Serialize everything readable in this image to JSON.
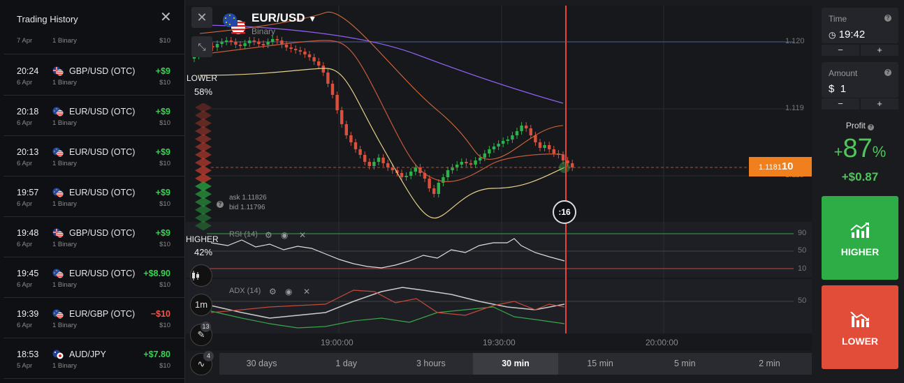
{
  "history": {
    "title": "Trading History",
    "first_row": {
      "date": "7 Apr",
      "type": "1 Binary",
      "investment": "$10"
    },
    "rows": [
      {
        "time": "20:24",
        "date": "6 Apr",
        "pair": "GBP/USD (OTC)",
        "type": "1 Binary",
        "result": "+$9",
        "investment": "$10",
        "flag": "uk"
      },
      {
        "time": "20:18",
        "date": "6 Apr",
        "pair": "EUR/USD (OTC)",
        "type": "1 Binary",
        "result": "+$9",
        "investment": "$10",
        "flag": "eu"
      },
      {
        "time": "20:13",
        "date": "6 Apr",
        "pair": "EUR/USD (OTC)",
        "type": "1 Binary",
        "result": "+$9",
        "investment": "$10",
        "flag": "eu"
      },
      {
        "time": "19:57",
        "date": "6 Apr",
        "pair": "EUR/USD (OTC)",
        "type": "1 Binary",
        "result": "+$9",
        "investment": "$10",
        "flag": "eu"
      },
      {
        "time": "19:48",
        "date": "6 Apr",
        "pair": "GBP/USD (OTC)",
        "type": "1 Binary",
        "result": "+$9",
        "investment": "$10",
        "flag": "uk"
      },
      {
        "time": "19:45",
        "date": "6 Apr",
        "pair": "EUR/USD (OTC)",
        "type": "1 Binary",
        "result": "+$8.90",
        "investment": "$10",
        "flag": "eu"
      },
      {
        "time": "19:39",
        "date": "6 Apr",
        "pair": "EUR/GBP (OTC)",
        "type": "1 Binary",
        "result": "−$10",
        "investment": "$10",
        "flag": "eu"
      },
      {
        "time": "18:53",
        "date": "5 Apr",
        "pair": "AUD/JPY",
        "type": "1 Binary",
        "result": "+$7.80",
        "investment": "$10",
        "flag": "au"
      }
    ]
  },
  "asset": {
    "name": "EUR/USD",
    "type": "Binary"
  },
  "sentiment": {
    "lower_label": "LOWER",
    "lower_pct": "58%",
    "higher_label": "HIGHER",
    "higher_pct": "42%",
    "lower_share": 0.58
  },
  "quote": {
    "ask": "ask 1.11826",
    "bid": "bid 1.11796",
    "price_prefix": "1.1181",
    "price_suffix": "10"
  },
  "countdown": ":16",
  "timeframe_btn": "1m",
  "badges": {
    "drawings": "13",
    "indicators": "4"
  },
  "indicators": {
    "rsi": "RSI (14)",
    "adx": "ADX (14)"
  },
  "price_axis": [
    "1.120",
    "1.119",
    "1.118"
  ],
  "rsi_axis": [
    "90",
    "50",
    "10"
  ],
  "adx_axis": [
    "50"
  ],
  "time_axis": [
    "19:00:00",
    "19:30:00",
    "20:00:00"
  ],
  "periods": [
    "30 days",
    "1 day",
    "3 hours",
    "30 min",
    "15 min",
    "5 min",
    "2 min"
  ],
  "active_period": "30 min",
  "panel": {
    "time_label": "Time",
    "time_value": "19:42",
    "amount_label": "Amount",
    "amount_currency": "$",
    "amount_value": "1",
    "minus": "−",
    "plus": "+",
    "profit_label": "Profit",
    "profit_pct_sign": "+",
    "profit_pct": "87",
    "profit_pct_unit": "%",
    "profit_amount": "+$0.87",
    "higher_label": "HIGHER",
    "lower_label": "LOWER"
  },
  "colors": {
    "up": "#39d354",
    "down": "#f1544a",
    "accent": "#f07f1e",
    "higher_btn": "#2eac46",
    "lower_btn": "#e14d38"
  }
}
